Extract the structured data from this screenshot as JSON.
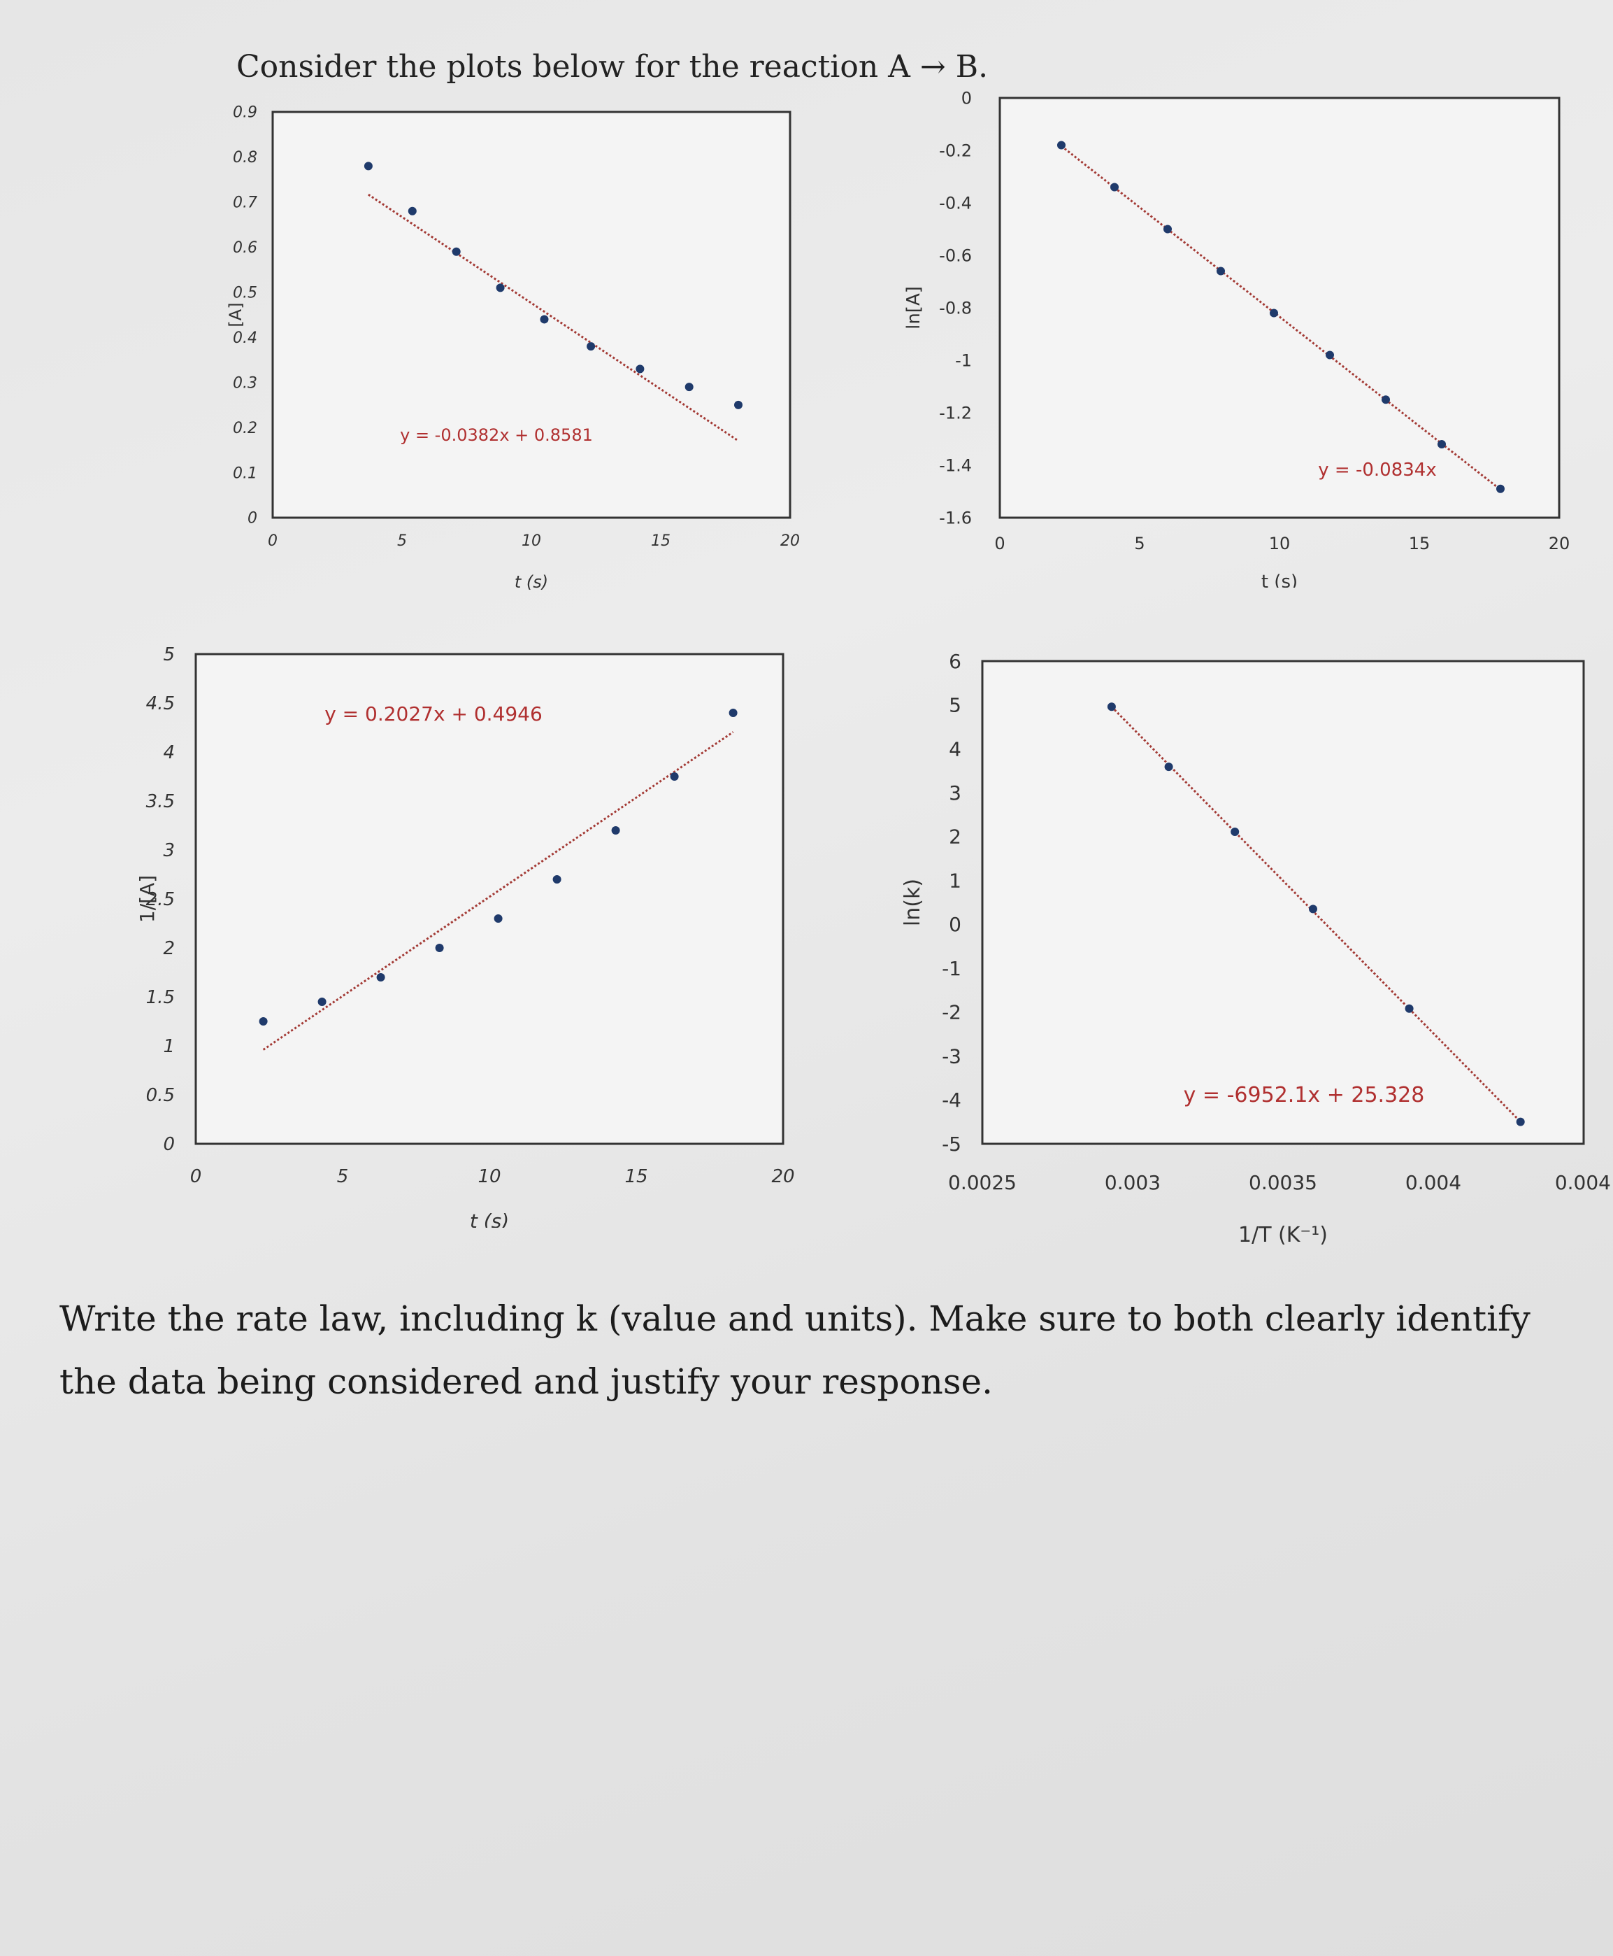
{
  "heading": "Consider the plots below for the reaction A → B.",
  "question": "Write the rate law, including k (value and units). Make sure to both clearly identify the data being considered and justify your response.",
  "colors": {
    "point": "#1f3a6b",
    "trendline": "#a33a35",
    "equation": "#b03030",
    "frame": "#333333"
  },
  "chart_data": [
    {
      "type": "scatter",
      "xlabel": "t (s)",
      "ylabel": "[A]",
      "xlim": [
        0,
        20
      ],
      "ylim": [
        0,
        0.9
      ],
      "x_ticks": [
        "0",
        "5",
        "10",
        "15",
        "20"
      ],
      "y_ticks": [
        "0",
        "0.1",
        "0.2",
        "0.3",
        "0.4",
        "0.5",
        "0.6",
        "0.7",
        "0.8",
        "0.9"
      ],
      "points": [
        [
          3.7,
          0.78
        ],
        [
          5.4,
          0.68
        ],
        [
          7.1,
          0.59
        ],
        [
          8.8,
          0.51
        ],
        [
          10.5,
          0.44
        ],
        [
          12.3,
          0.38
        ],
        [
          14.2,
          0.33
        ],
        [
          16.1,
          0.29
        ],
        [
          18.0,
          0.25
        ]
      ],
      "trendline": {
        "slope": -0.0382,
        "intercept": 0.8581,
        "x_range": [
          3.7,
          18.0
        ]
      },
      "equation": "y = -0.0382x + 0.8581"
    },
    {
      "type": "scatter",
      "xlabel": "t (s)",
      "ylabel": "ln[A]",
      "xlim": [
        0,
        20
      ],
      "ylim": [
        -1.6,
        0
      ],
      "x_ticks": [
        "0",
        "5",
        "10",
        "15",
        "20"
      ],
      "y_ticks": [
        "-1.6",
        "-1.4",
        "-1.2",
        "-1",
        "-0.8",
        "-0.6",
        "-0.4",
        "-0.2",
        "0"
      ],
      "points": [
        [
          2.2,
          -0.18
        ],
        [
          4.1,
          -0.34
        ],
        [
          6.0,
          -0.5
        ],
        [
          7.9,
          -0.66
        ],
        [
          9.8,
          -0.82
        ],
        [
          11.8,
          -0.98
        ],
        [
          13.8,
          -1.15
        ],
        [
          15.8,
          -1.32
        ],
        [
          17.9,
          -1.49
        ]
      ],
      "trendline": {
        "slope": -0.0834,
        "intercept": 0,
        "x_range": [
          2.2,
          17.9
        ]
      },
      "equation": "y = -0.0834x"
    },
    {
      "type": "scatter",
      "xlabel": "t (s)",
      "ylabel": "1/[A]",
      "xlim": [
        0,
        20
      ],
      "ylim": [
        0,
        5
      ],
      "x_ticks": [
        "0",
        "5",
        "10",
        "15",
        "20"
      ],
      "y_ticks": [
        "0",
        "0.5",
        "1",
        "1.5",
        "2",
        "2.5",
        "3",
        "3.5",
        "4",
        "4.5",
        "5"
      ],
      "points": [
        [
          2.3,
          1.25
        ],
        [
          4.3,
          1.45
        ],
        [
          6.3,
          1.7
        ],
        [
          8.3,
          2.0
        ],
        [
          10.3,
          2.3
        ],
        [
          12.3,
          2.7
        ],
        [
          14.3,
          3.2
        ],
        [
          16.3,
          3.75
        ],
        [
          18.3,
          4.4
        ]
      ],
      "trendline": {
        "slope": 0.2027,
        "intercept": 0.4946,
        "x_range": [
          2.3,
          18.3
        ]
      },
      "equation": "y = 0.2027x + 0.4946"
    },
    {
      "type": "scatter",
      "xlabel": "1/T (K⁻¹)",
      "ylabel": "ln(k)",
      "xlim": [
        0.0025,
        0.0045
      ],
      "ylim": [
        -5,
        6
      ],
      "x_ticks": [
        "0.0025",
        "0.003",
        "0.0035",
        "0.004",
        "0.004"
      ],
      "y_ticks": [
        "-5",
        "-4",
        "-3",
        "-2",
        "-1",
        "0",
        "1",
        "2",
        "3",
        "4",
        "5",
        "6"
      ],
      "points": [
        [
          0.00293,
          4.96
        ],
        [
          0.00312,
          3.59
        ],
        [
          0.00334,
          2.11
        ],
        [
          0.0036,
          0.35
        ],
        [
          0.00392,
          -1.92
        ],
        [
          0.00429,
          -4.5
        ]
      ],
      "trendline": {
        "slope": -6952.1,
        "intercept": 25.328,
        "x_range": [
          0.00293,
          0.00429
        ]
      },
      "equation": "y = -6952.1x + 25.328"
    }
  ]
}
